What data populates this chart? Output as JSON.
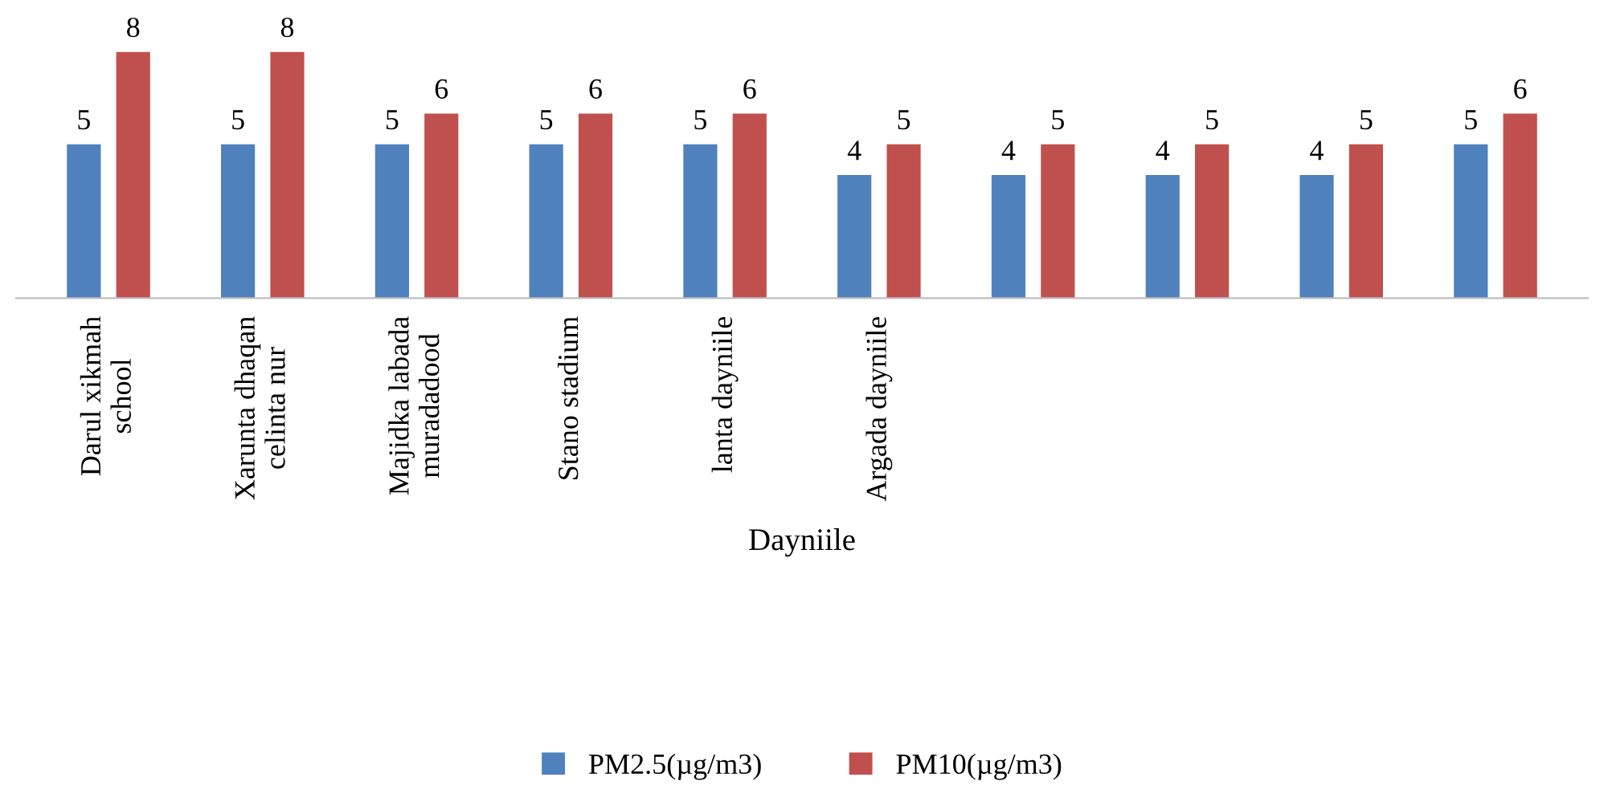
{
  "chart_data": {
    "type": "bar",
    "xlabel": "Dayniile",
    "categories": [
      "Darul xikmah\nschool",
      "Xarunta dhaqan\ncelinta nur",
      "Majidka labada\nmuradadood",
      "Stano stadium",
      "lanta dayniile",
      "Argada dayniile",
      null,
      null,
      null,
      null
    ],
    "series": [
      {
        "name": "PM2.5(µg/m3)",
        "color": "#4f81bd",
        "values": [
          5,
          5,
          5,
          5,
          5,
          4,
          4,
          4,
          4,
          5
        ]
      },
      {
        "name": "PM10(µg/m3)",
        "color": "#c0504d",
        "values": [
          8,
          8,
          6,
          6,
          6,
          5,
          5,
          5,
          5,
          6
        ]
      }
    ],
    "data_labels": true,
    "legend": "bottom",
    "grid": false
  }
}
